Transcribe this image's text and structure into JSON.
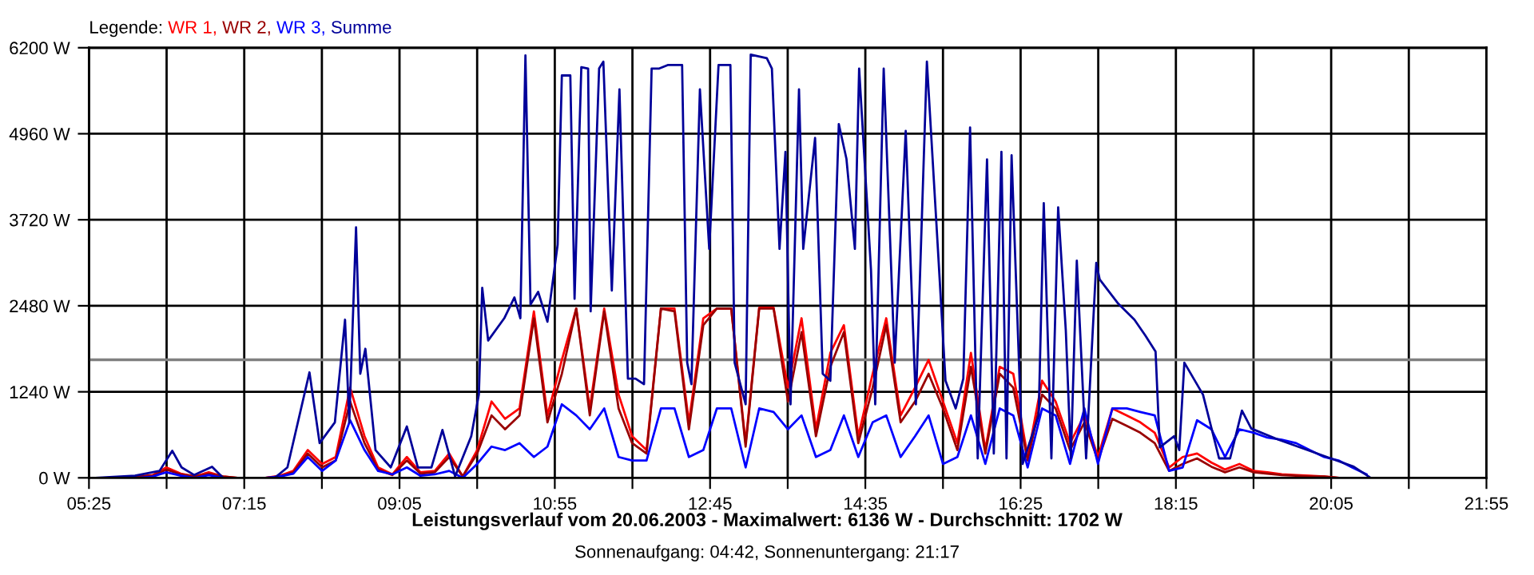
{
  "chart_data": {
    "type": "line",
    "title": "Leistungsverlauf vom 20.06.2003 - Maximalwert: 6136 W - Durchschnitt: 1702 W",
    "subtitle": "Sonnenaufgang: 04:42, Sonnenuntergang: 21:17",
    "legend_title": "Legende:",
    "legend": "top left",
    "grid": true,
    "xlim": [
      5.4167,
      21.9167
    ],
    "xticks": [
      {
        "value": 5.4167,
        "label": "05:25"
      },
      {
        "value": 6.3333,
        "label": null
      },
      {
        "value": 7.25,
        "label": "07:15"
      },
      {
        "value": 8.1667,
        "label": null
      },
      {
        "value": 9.0833,
        "label": "09:05"
      },
      {
        "value": 10.0,
        "label": null
      },
      {
        "value": 10.9167,
        "label": "10:55"
      },
      {
        "value": 11.8333,
        "label": null
      },
      {
        "value": 12.75,
        "label": "12:45"
      },
      {
        "value": 13.6667,
        "label": null
      },
      {
        "value": 14.5833,
        "label": "14:35"
      },
      {
        "value": 15.5,
        "label": null
      },
      {
        "value": 16.4167,
        "label": "16:25"
      },
      {
        "value": 17.3333,
        "label": null
      },
      {
        "value": 18.25,
        "label": "18:15"
      },
      {
        "value": 19.1667,
        "label": null
      },
      {
        "value": 20.0833,
        "label": "20:05"
      },
      {
        "value": 21.0,
        "label": null
      },
      {
        "value": 21.9167,
        "label": "21:55"
      }
    ],
    "ylim": [
      0,
      6200
    ],
    "yticks": [
      {
        "value": 0,
        "label": "0 W"
      },
      {
        "value": 1240,
        "label": "1240 W"
      },
      {
        "value": 2480,
        "label": "2480 W"
      },
      {
        "value": 3720,
        "label": "3720 W"
      },
      {
        "value": 4960,
        "label": "4960 W"
      },
      {
        "value": 6200,
        "label": "6200 W"
      }
    ],
    "ref_lines": [
      {
        "axis": "y",
        "value": 1702,
        "color": "#808080"
      }
    ],
    "x": [
      5.83,
      6.0,
      6.17,
      6.33,
      6.5,
      6.67,
      6.83,
      7.0,
      7.17,
      7.33,
      7.5,
      7.67,
      7.83,
      8.0,
      8.17,
      8.33,
      8.5,
      8.67,
      8.83,
      9.0,
      9.17,
      9.33,
      9.5,
      9.67,
      9.83,
      10.0,
      10.17,
      10.33,
      10.5,
      10.67,
      10.83,
      11.0,
      11.17,
      11.33,
      11.5,
      11.67,
      11.83,
      12.0,
      12.17,
      12.33,
      12.5,
      12.67,
      12.83,
      13.0,
      13.17,
      13.33,
      13.5,
      13.67,
      13.83,
      14.0,
      14.17,
      14.33,
      14.5,
      14.67,
      14.83,
      15.0,
      15.17,
      15.33,
      15.5,
      15.67,
      15.83,
      16.0,
      16.17,
      16.33,
      16.5,
      16.67,
      16.83,
      17.0,
      17.17,
      17.33,
      17.5,
      17.67,
      17.83,
      18.0,
      18.17,
      18.33,
      18.5,
      18.67,
      18.83,
      19.0,
      19.17,
      19.33,
      19.5,
      19.67,
      19.83,
      20.0,
      20.17,
      20.33,
      20.5
    ],
    "series": [
      {
        "name": "WR 1,",
        "color": "#ff0000",
        "values": [
          0,
          20,
          40,
          150,
          60,
          20,
          80,
          20,
          0,
          0,
          0,
          30,
          100,
          400,
          200,
          300,
          1300,
          600,
          150,
          50,
          300,
          80,
          100,
          350,
          20,
          400,
          1100,
          850,
          1000,
          2400,
          900,
          1700,
          2440,
          1000,
          2440,
          1200,
          600,
          400,
          2440,
          2440,
          800,
          2300,
          2440,
          2440,
          500,
          2450,
          2450,
          1300,
          2300,
          700,
          1800,
          2200,
          600,
          1500,
          2300,
          900,
          1300,
          1700,
          1100,
          500,
          1800,
          400,
          1600,
          1500,
          300,
          1400,
          1100,
          500,
          900,
          300,
          1000,
          900,
          800,
          650,
          150,
          300,
          350,
          220,
          120,
          200,
          100,
          80,
          50,
          40,
          30,
          20,
          0,
          null,
          null
        ]
      },
      {
        "name": "WR 2,",
        "color": "#990000",
        "values": [
          0,
          20,
          30,
          120,
          50,
          20,
          60,
          20,
          0,
          0,
          0,
          20,
          80,
          350,
          150,
          250,
          1100,
          500,
          120,
          40,
          250,
          60,
          80,
          300,
          20,
          350,
          900,
          700,
          900,
          2300,
          800,
          1500,
          2440,
          900,
          2400,
          1000,
          500,
          350,
          2440,
          2400,
          700,
          2200,
          2440,
          2440,
          450,
          2440,
          2440,
          1100,
          2100,
          600,
          1600,
          2100,
          500,
          1300,
          2200,
          800,
          1100,
          1500,
          1000,
          400,
          1600,
          350,
          1500,
          1300,
          250,
          1200,
          1000,
          400,
          800,
          250,
          850,
          750,
          650,
          500,
          100,
          200,
          280,
          160,
          80,
          150,
          80,
          60,
          40,
          30,
          20,
          20,
          0,
          0,
          0
        ]
      },
      {
        "name": "WR 3,",
        "color": "#0000ff",
        "values": [
          0,
          0,
          20,
          80,
          30,
          0,
          40,
          0,
          0,
          0,
          0,
          20,
          60,
          300,
          100,
          250,
          830,
          400,
          100,
          50,
          150,
          30,
          50,
          100,
          0,
          200,
          450,
          400,
          500,
          300,
          450,
          1060,
          900,
          700,
          1000,
          300,
          250,
          250,
          1000,
          1000,
          300,
          400,
          1000,
          1000,
          150,
          1000,
          950,
          700,
          900,
          300,
          400,
          900,
          300,
          800,
          900,
          300,
          600,
          900,
          200,
          300,
          900,
          200,
          1000,
          900,
          150,
          1000,
          900,
          200,
          1000,
          200,
          1000,
          1000,
          950,
          900,
          100,
          150,
          830,
          700,
          300,
          700,
          650,
          580,
          550,
          500,
          400,
          300,
          250,
          150,
          50
        ]
      },
      {
        "name": "Summe",
        "color": "#000099",
        "x": [
          5.49,
          5.96,
          6.25,
          6.4,
          6.51,
          6.66,
          6.87,
          7.0,
          7.61,
          7.76,
          8.02,
          8.14,
          8.32,
          8.44,
          8.49,
          8.57,
          8.62,
          8.68,
          8.8,
          8.98,
          9.17,
          9.3,
          9.46,
          9.59,
          9.74,
          9.93,
          10.02,
          10.06,
          10.13,
          10.32,
          10.44,
          10.51,
          10.57,
          10.63,
          10.72,
          10.83,
          10.95,
          11.0,
          11.1,
          11.15,
          11.23,
          11.31,
          11.34,
          11.44,
          11.49,
          11.59,
          11.68,
          11.78,
          11.87,
          11.97,
          12.06,
          12.15,
          12.25,
          12.42,
          12.48,
          12.53,
          12.63,
          12.74,
          12.85,
          12.99,
          13.04,
          13.17,
          13.23,
          13.42,
          13.48,
          13.57,
          13.64,
          13.7,
          13.8,
          13.85,
          13.99,
          14.08,
          14.17,
          14.27,
          14.36,
          14.46,
          14.51,
          14.65,
          14.7,
          14.8,
          14.93,
          15.06,
          15.18,
          15.31,
          15.44,
          15.53,
          15.65,
          15.74,
          15.82,
          15.91,
          16.02,
          16.1,
          16.19,
          16.25,
          16.31,
          16.44,
          16.48,
          16.63,
          16.69,
          16.78,
          16.86,
          16.95,
          17.01,
          17.08,
          17.19,
          17.31,
          17.35,
          17.57,
          17.76,
          17.89,
          18.01,
          18.06,
          18.23,
          18.29,
          18.35,
          18.57,
          18.76,
          18.89,
          19.03,
          19.14,
          19.46,
          20.08,
          20.35,
          20.55
        ],
        "values": [
          0,
          30,
          100,
          390,
          150,
          40,
          160,
          0,
          0,
          150,
          1520,
          500,
          800,
          2280,
          800,
          3610,
          1500,
          1860,
          400,
          150,
          740,
          150,
          150,
          690,
          20,
          600,
          1200,
          2740,
          1980,
          2300,
          2600,
          2300,
          6090,
          2500,
          2680,
          2250,
          3360,
          5800,
          5800,
          2580,
          5920,
          5900,
          2400,
          5900,
          6000,
          2700,
          5600,
          1430,
          1430,
          1350,
          5900,
          5900,
          5950,
          5950,
          1660,
          1350,
          5600,
          3300,
          5950,
          5950,
          1660,
          1060,
          6100,
          6050,
          5900,
          3300,
          4700,
          1060,
          5600,
          3300,
          4900,
          1500,
          1400,
          5100,
          4600,
          3300,
          5900,
          3000,
          1060,
          5900,
          1660,
          5000,
          1060,
          6000,
          3300,
          1400,
          1000,
          1430,
          5050,
          280,
          4590,
          350,
          4700,
          280,
          4650,
          200,
          350,
          900,
          3960,
          280,
          3900,
          2130,
          280,
          3130,
          280,
          3100,
          2860,
          2510,
          2280,
          2050,
          1820,
          440,
          600,
          400,
          1660,
          1200,
          280,
          280,
          970,
          710,
          550,
          280,
          160,
          0
        ]
      }
    ]
  }
}
